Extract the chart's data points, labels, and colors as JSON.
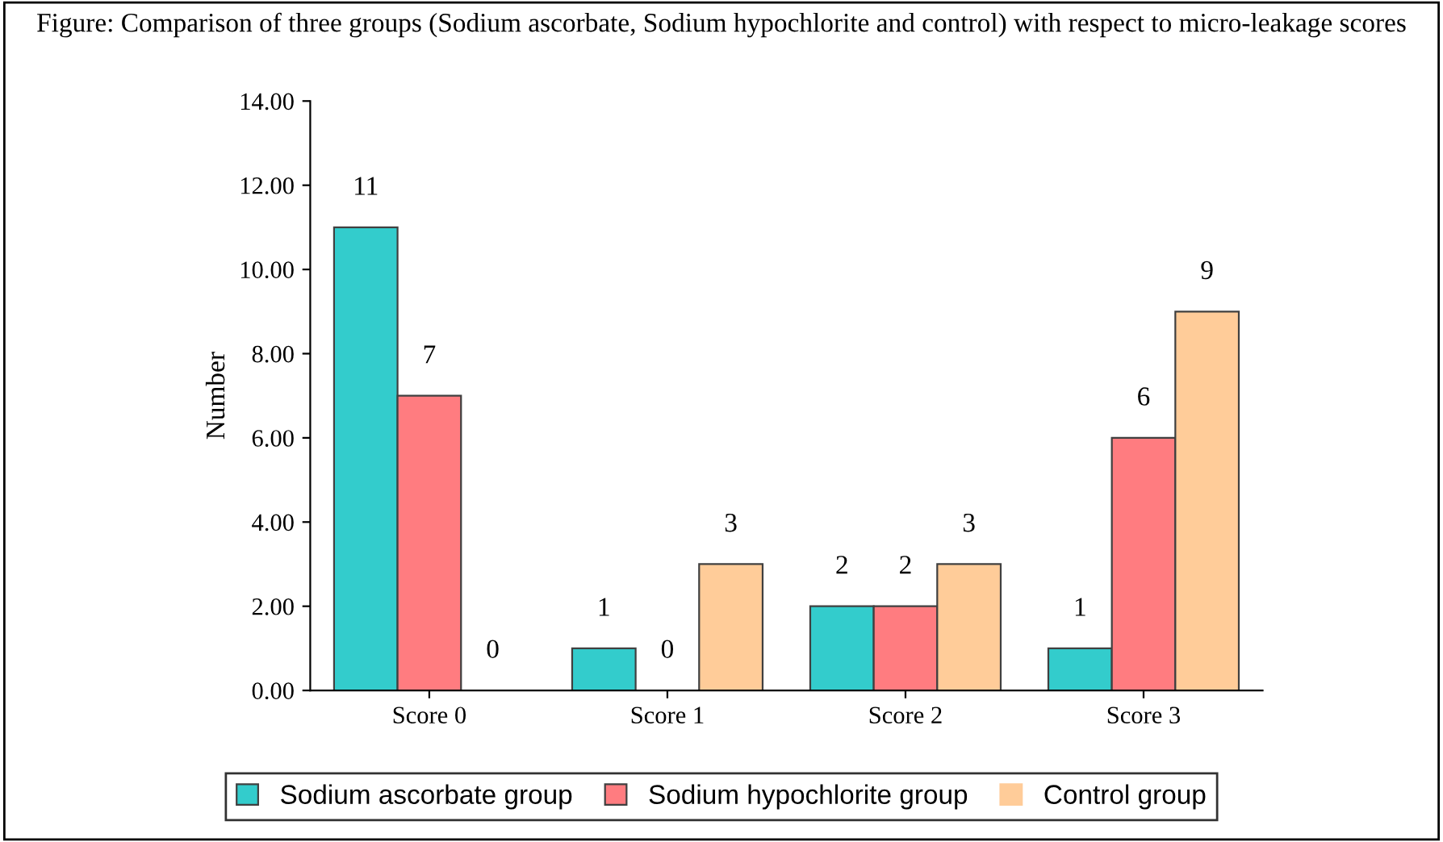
{
  "chart_data": {
    "type": "bar",
    "title": "Figure: Comparison of three groups (Sodium ascorbate, Sodium hypochlorite and control) with respect to micro-leakage scores",
    "ylabel": "Number",
    "categories": [
      "Score 0",
      "Score 1",
      "Score 2",
      "Score 3"
    ],
    "series": [
      {
        "name": "Sodium ascorbate group",
        "color": "#33cccc",
        "values": [
          11,
          1,
          2,
          1
        ]
      },
      {
        "name": "Sodium hypochlorite group",
        "color": "#ff7c80",
        "values": [
          7,
          0,
          2,
          6
        ]
      },
      {
        "name": "Control group",
        "color": "#ffcc99",
        "values": [
          0,
          3,
          3,
          9
        ]
      }
    ],
    "ylim": [
      0,
      14
    ],
    "yticks": [
      {
        "value": 0,
        "label": "0.00"
      },
      {
        "value": 2,
        "label": "2.00"
      },
      {
        "value": 4,
        "label": "4.00"
      },
      {
        "value": 6,
        "label": "6.00"
      },
      {
        "value": 8,
        "label": "8.00"
      },
      {
        "value": 10,
        "label": "10.00"
      },
      {
        "value": 12,
        "label": "12.00"
      },
      {
        "value": 14,
        "label": "14.00"
      }
    ],
    "data_labels": true,
    "grid": false,
    "legend": "bottom"
  }
}
